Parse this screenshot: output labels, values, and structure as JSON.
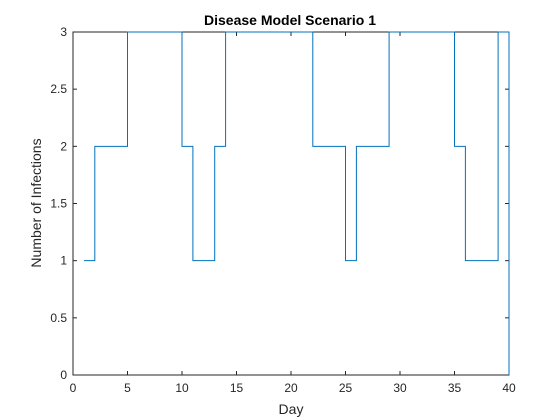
{
  "chart_data": {
    "type": "line",
    "step": true,
    "title": "Disease Model Scenario 1",
    "xlabel": "Day",
    "ylabel": "Number of Infections",
    "xlim": [
      0,
      40
    ],
    "ylim": [
      0,
      3
    ],
    "xticks": [
      "0",
      "5",
      "10",
      "15",
      "20",
      "25",
      "30",
      "35",
      "40"
    ],
    "yticks": [
      "0",
      "0.5",
      "1",
      "1.5",
      "2",
      "2.5",
      "3"
    ],
    "grid": false,
    "line_color": "#0072BD",
    "x": [
      1,
      2,
      5,
      10,
      11,
      13,
      14,
      22,
      25,
      26,
      29,
      35,
      36,
      39,
      40
    ],
    "y": [
      1,
      2,
      3,
      2,
      1,
      2,
      3,
      2,
      1,
      2,
      3,
      2,
      1,
      3,
      0
    ]
  }
}
